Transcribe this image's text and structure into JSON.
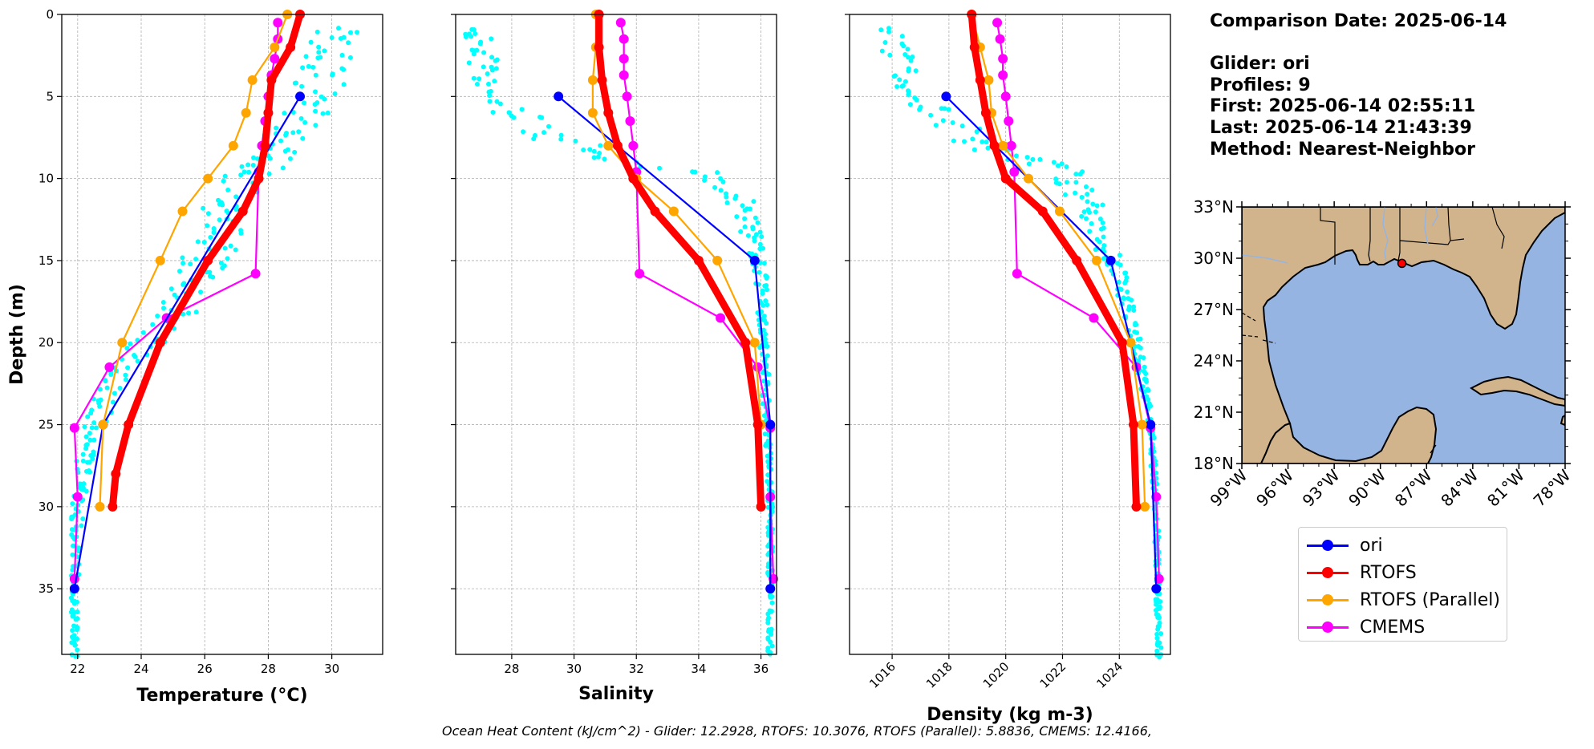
{
  "info": {
    "comparison_date": "Comparison Date: 2025-06-14",
    "glider": "Glider: ori",
    "profiles": "Profiles: 9",
    "first": "First: 2025-06-14 02:55:11",
    "last": "Last: 2025-06-14 21:43:39",
    "method": "Method: Nearest-Neighbor"
  },
  "footer": "Ocean Heat Content (kJ/cm^2) - Glider: 12.2928,  RTOFS: 10.3076,  RTOFS (Parallel): 5.8836,  CMEMS: 12.4166,",
  "legend": [
    {
      "label": "ori",
      "color": "#0000ff"
    },
    {
      "label": "RTOFS",
      "color": "#ff0000"
    },
    {
      "label": "RTOFS (Parallel)",
      "color": "#ffa500"
    },
    {
      "label": "CMEMS",
      "color": "#ff00ff"
    }
  ],
  "colors": {
    "glider_scatter": "#00ffff",
    "land": "#d2b48c",
    "water": "#95b4e2"
  },
  "map": {
    "lat_ticks": [
      "18°N",
      "21°N",
      "24°N",
      "27°N",
      "30°N",
      "33°N"
    ],
    "lon_ticks": [
      "99°W",
      "96°W",
      "93°W",
      "90°W",
      "87°W",
      "84°W",
      "81°W",
      "78°W"
    ],
    "lon_range": [
      -99,
      -78
    ],
    "lat_range": [
      18,
      33
    ],
    "glider_position": {
      "lon": -88.6,
      "lat": 29.7
    }
  },
  "chart_data": [
    {
      "type": "line",
      "xlabel": "Temperature (°C)",
      "ylabel": "Depth (m)",
      "xlim": [
        21.5,
        31.6
      ],
      "ylim": [
        39,
        0
      ],
      "xticks": [
        22,
        24,
        26,
        28,
        30
      ],
      "yticks": [
        0,
        5,
        10,
        15,
        20,
        25,
        30,
        35
      ],
      "grid": true,
      "series": [
        {
          "name": "ori",
          "x": [
            29.0,
            22.8,
            21.9
          ],
          "y": [
            5,
            25,
            35
          ]
        },
        {
          "name": "RTOFS",
          "x": [
            29.0,
            28.7,
            28.1,
            28.0,
            27.9,
            27.7,
            27.2,
            26.1,
            24.6,
            23.6,
            23.2,
            23.1
          ],
          "y": [
            0,
            2,
            4,
            6,
            8,
            10,
            12,
            15,
            20,
            25,
            28,
            30
          ]
        },
        {
          "name": "RTOFS (Parallel)",
          "x": [
            28.6,
            28.2,
            27.5,
            27.3,
            26.9,
            26.1,
            25.3,
            24.6,
            23.4,
            22.8,
            22.7
          ],
          "y": [
            0,
            2,
            4,
            6,
            8,
            10,
            12,
            15,
            20,
            25,
            30
          ]
        },
        {
          "name": "CMEMS",
          "x": [
            28.3,
            28.3,
            28.2,
            28.1,
            28.0,
            27.9,
            27.8,
            27.7,
            27.6,
            24.8,
            23.0,
            21.9,
            22.0,
            21.9
          ],
          "y": [
            0.5,
            1.5,
            2.7,
            3.7,
            5.0,
            6.5,
            8.0,
            9.6,
            15.8,
            18.5,
            21.5,
            25.2,
            29.4,
            34.4
          ]
        }
      ]
    },
    {
      "type": "line",
      "xlabel": "Salinity",
      "ylabel": "",
      "xlim": [
        26.2,
        36.5
      ],
      "ylim": [
        39,
        0
      ],
      "xticks": [
        28,
        30,
        32,
        34,
        36
      ],
      "yticks": [
        0,
        5,
        10,
        15,
        20,
        25,
        30,
        35
      ],
      "grid": true,
      "series": [
        {
          "name": "ori",
          "x": [
            29.5,
            35.8,
            36.3,
            36.3
          ],
          "y": [
            5,
            15,
            25,
            35
          ]
        },
        {
          "name": "RTOFS",
          "x": [
            30.8,
            30.8,
            30.9,
            31.1,
            31.4,
            31.9,
            32.6,
            34.0,
            35.5,
            35.9,
            36.0
          ],
          "y": [
            0,
            2,
            4,
            6,
            8,
            10,
            12,
            15,
            20,
            25,
            30
          ]
        },
        {
          "name": "RTOFS (Parallel)",
          "x": [
            30.7,
            30.7,
            30.6,
            30.6,
            31.1,
            32.0,
            33.2,
            34.6,
            35.8,
            36.0,
            36.0
          ],
          "y": [
            0,
            2,
            4,
            6,
            8,
            10,
            12,
            15,
            20,
            25,
            30
          ]
        },
        {
          "name": "CMEMS",
          "x": [
            31.5,
            31.6,
            31.6,
            31.6,
            31.7,
            31.8,
            31.9,
            32.0,
            32.1,
            34.7,
            35.9,
            36.3,
            36.3,
            36.4
          ],
          "y": [
            0.5,
            1.5,
            2.7,
            3.7,
            5.0,
            6.5,
            8.0,
            9.6,
            15.8,
            18.5,
            21.5,
            25.2,
            29.4,
            34.4
          ]
        }
      ]
    },
    {
      "type": "line",
      "xlabel": "Density (kg m-3)",
      "ylabel": "",
      "xlim": [
        1014.5,
        1025.8
      ],
      "ylim": [
        39,
        0
      ],
      "xticks": [
        1016,
        1018,
        1020,
        1022,
        1024
      ],
      "yticks": [
        0,
        5,
        10,
        15,
        20,
        25,
        30,
        35
      ],
      "grid": true,
      "series": [
        {
          "name": "ori",
          "x": [
            1017.9,
            1023.7,
            1025.1,
            1025.3
          ],
          "y": [
            5,
            15,
            25,
            35
          ]
        },
        {
          "name": "RTOFS",
          "x": [
            1018.8,
            1018.9,
            1019.1,
            1019.3,
            1019.6,
            1020.0,
            1021.3,
            1022.5,
            1024.1,
            1024.5,
            1024.6
          ],
          "y": [
            0,
            2,
            4,
            6,
            8,
            10,
            12,
            15,
            20,
            25,
            30
          ]
        },
        {
          "name": "RTOFS (Parallel)",
          "x": [
            1018.8,
            1019.1,
            1019.4,
            1019.5,
            1019.9,
            1020.8,
            1021.9,
            1023.2,
            1024.4,
            1024.8,
            1024.9
          ],
          "y": [
            0,
            2,
            4,
            6,
            8,
            10,
            12,
            15,
            20,
            25,
            30
          ]
        },
        {
          "name": "CMEMS",
          "x": [
            1019.7,
            1019.8,
            1019.9,
            1019.9,
            1020.0,
            1020.1,
            1020.2,
            1020.3,
            1020.4,
            1023.1,
            1024.6,
            1025.1,
            1025.3,
            1025.4
          ],
          "y": [
            0.5,
            1.5,
            2.7,
            3.7,
            5.0,
            6.5,
            8.0,
            9.6,
            15.8,
            18.5,
            21.5,
            25.2,
            29.4,
            34.4
          ]
        }
      ]
    }
  ]
}
